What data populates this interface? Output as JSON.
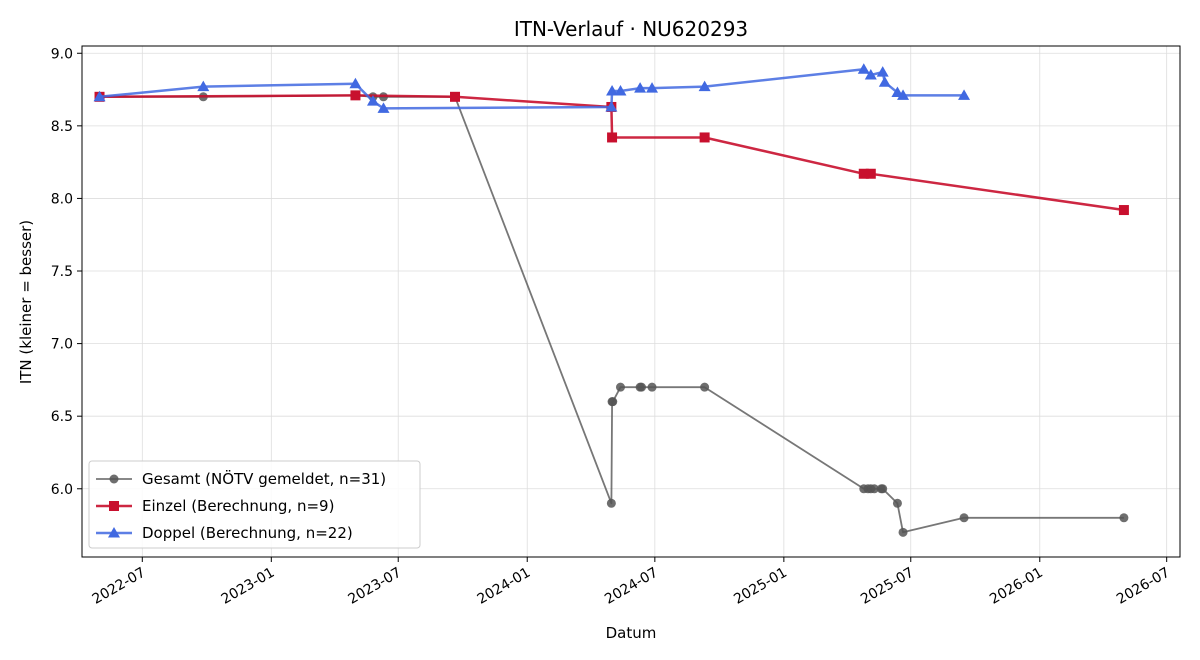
{
  "chart_data": {
    "type": "line",
    "title": "ITN-Verlauf · NU620293",
    "xlabel": "Datum",
    "ylabel": "ITN  (kleiner = besser)",
    "xlim": [
      "2022-04-06",
      "2026-07-20"
    ],
    "ylim": [
      5.53,
      9.05
    ],
    "x_ticks": [
      "2022-07",
      "2023-01",
      "2023-07",
      "2024-01",
      "2024-07",
      "2025-01",
      "2025-07",
      "2026-01",
      "2026-07"
    ],
    "y_ticks": [
      6.0,
      6.5,
      7.0,
      7.5,
      8.0,
      8.5,
      9.0
    ],
    "grid": true,
    "legend": "lower-left",
    "series": [
      {
        "name": "Gesamt (NÖTV gemeldet, n=31)",
        "color": "#555555",
        "marker": "circle",
        "points": [
          [
            "2022-05-01",
            8.7
          ],
          [
            "2022-09-26",
            8.7
          ],
          [
            "2023-05-01",
            8.71
          ],
          [
            "2023-05-26",
            8.7
          ],
          [
            "2023-06-10",
            8.7
          ],
          [
            "2023-09-20",
            8.7
          ],
          [
            "2024-04-30",
            5.9
          ],
          [
            "2024-05-01",
            6.6
          ],
          [
            "2024-05-02",
            6.6
          ],
          [
            "2024-05-13",
            6.7
          ],
          [
            "2024-06-10",
            6.7
          ],
          [
            "2024-06-12",
            6.7
          ],
          [
            "2024-06-27",
            6.7
          ],
          [
            "2024-09-10",
            6.7
          ],
          [
            "2025-04-25",
            6.0
          ],
          [
            "2025-05-01",
            6.0
          ],
          [
            "2025-05-05",
            6.0
          ],
          [
            "2025-05-10",
            6.0
          ],
          [
            "2025-05-20",
            6.0
          ],
          [
            "2025-05-22",
            6.0
          ],
          [
            "2025-06-12",
            5.9
          ],
          [
            "2025-06-20",
            5.7
          ],
          [
            "2025-09-15",
            5.8
          ],
          [
            "2026-05-01",
            5.8
          ]
        ]
      },
      {
        "name": "Einzel (Berechnung, n=9)",
        "color": "#c8102e",
        "marker": "square",
        "points": [
          [
            "2022-05-01",
            8.7
          ],
          [
            "2023-05-01",
            8.71
          ],
          [
            "2023-09-20",
            8.7
          ],
          [
            "2024-04-30",
            8.63
          ],
          [
            "2024-05-01",
            8.42
          ],
          [
            "2024-09-10",
            8.42
          ],
          [
            "2025-04-25",
            8.17
          ],
          [
            "2025-05-05",
            8.17
          ],
          [
            "2026-05-01",
            7.92
          ]
        ]
      },
      {
        "name": "Doppel (Berechnung, n=22)",
        "color": "#4169e1",
        "marker": "triangle",
        "points": [
          [
            "2022-05-01",
            8.7
          ],
          [
            "2022-09-26",
            8.77
          ],
          [
            "2023-05-01",
            8.79
          ],
          [
            "2023-05-26",
            8.67
          ],
          [
            "2023-06-10",
            8.62
          ],
          [
            "2024-04-30",
            8.63
          ],
          [
            "2024-05-01",
            8.74
          ],
          [
            "2024-05-13",
            8.74
          ],
          [
            "2024-06-10",
            8.76
          ],
          [
            "2024-06-27",
            8.76
          ],
          [
            "2024-09-10",
            8.77
          ],
          [
            "2025-04-25",
            8.89
          ],
          [
            "2025-05-05",
            8.85
          ],
          [
            "2025-05-22",
            8.87
          ],
          [
            "2025-05-25",
            8.8
          ],
          [
            "2025-06-12",
            8.73
          ],
          [
            "2025-06-20",
            8.71
          ],
          [
            "2025-09-15",
            8.71
          ]
        ]
      }
    ]
  }
}
